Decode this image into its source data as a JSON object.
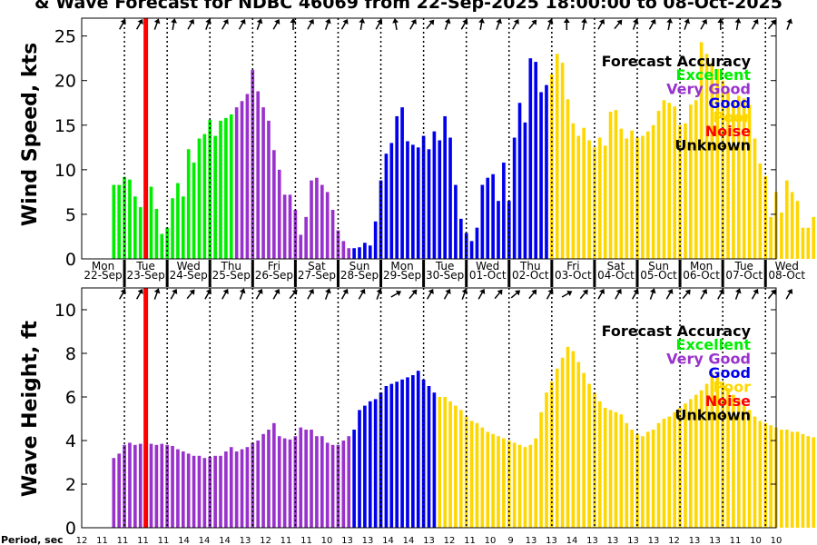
{
  "title": "& Wave Forecast for NDBC 46069 from 22-Sep-2025 18:00:00 to 08-Oct-2025",
  "colors": {
    "excellent": "#00ee00",
    "very_good": "#9932cc",
    "good": "#0000ee",
    "poor": "#ffd700",
    "noise": "#ff0000",
    "unknown": "#000000"
  },
  "legend": {
    "heading": "Forecast Accuracy",
    "items": [
      {
        "label": "Excellent",
        "color": "#00ee00"
      },
      {
        "label": "Very Good",
        "color": "#9932cc"
      },
      {
        "label": "Good",
        "color": "#0000ee"
      },
      {
        "label": "Poor",
        "color": "#ffd700"
      },
      {
        "label": "Noise",
        "color": "#ff0000"
      },
      {
        "label": "Unknown",
        "color": "#000000"
      }
    ]
  },
  "day_labels": [
    {
      "day": "Mon",
      "date": "22-Sep"
    },
    {
      "day": "Tue",
      "date": "23-Sep"
    },
    {
      "day": "Wed",
      "date": "24-Sep"
    },
    {
      "day": "Thu",
      "date": "25-Sep"
    },
    {
      "day": "Fri",
      "date": "26-Sep"
    },
    {
      "day": "Sat",
      "date": "27-Sep"
    },
    {
      "day": "Sun",
      "date": "28-Sep"
    },
    {
      "day": "Mon",
      "date": "29-Sep"
    },
    {
      "day": "Tue",
      "date": "30-Sep"
    },
    {
      "day": "Wed",
      "date": "01-Oct"
    },
    {
      "day": "Thu",
      "date": "02-Oct"
    },
    {
      "day": "Fri",
      "date": "03-Oct"
    },
    {
      "day": "Sat",
      "date": "04-Oct"
    },
    {
      "day": "Sun",
      "date": "05-Oct"
    },
    {
      "day": "Mon",
      "date": "06-Oct"
    },
    {
      "day": "Tue",
      "date": "07-Oct"
    },
    {
      "day": "Wed",
      "date": "08-Oct"
    }
  ],
  "period_label": "Period, sec",
  "period_values": [
    12,
    11,
    11,
    11,
    11,
    14,
    14,
    14,
    13,
    12,
    11,
    11,
    10,
    13,
    13,
    14,
    14,
    13,
    12,
    11,
    10,
    9,
    13,
    13,
    14,
    13,
    13,
    13,
    13,
    12,
    13,
    13,
    11,
    10,
    10
  ],
  "chart_data": [
    {
      "type": "bar",
      "ylabel": "Wind Speed, kts",
      "ylim": [
        0,
        27
      ],
      "yticks": [
        0,
        5,
        10,
        15,
        20,
        25
      ],
      "grid": false,
      "legend_position": "top-right",
      "x_unit": "days from 22-Sep 00:00",
      "bar_step_days": 0.125,
      "first_bar_day": 0.75,
      "now_line_day": 1.5,
      "values": [
        8.3,
        8.3,
        9.2,
        8.9,
        7.0,
        5.8,
        7.5,
        8.1,
        5.6,
        2.8,
        3.5,
        6.8,
        8.5,
        7.0,
        12.3,
        10.8,
        13.5,
        14.0,
        15.6,
        13.8,
        15.5,
        15.8,
        16.2,
        17.0,
        17.7,
        18.5,
        21.2,
        18.8,
        17.0,
        15.5,
        12.2,
        10.0,
        7.2,
        7.2,
        5.5,
        2.7,
        4.7,
        8.8,
        9.1,
        8.3,
        7.5,
        5.5,
        3.2,
        2.0,
        1.2,
        1.2,
        1.3,
        1.8,
        1.5,
        4.2,
        8.8,
        11.8,
        13.0,
        16.0,
        17.0,
        13.2,
        12.8,
        12.5,
        13.8,
        12.3,
        14.3,
        13.3,
        16.0,
        13.6,
        8.3,
        4.5,
        2.9,
        2.0,
        3.5,
        8.3,
        9.1,
        9.5,
        6.5,
        10.8,
        6.5,
        13.6,
        17.5,
        15.3,
        22.5,
        22.1,
        18.7,
        19.5,
        20.7,
        23.0,
        22.0,
        17.9,
        15.2,
        13.8,
        14.7,
        13.3,
        12.5,
        13.6,
        12.7,
        16.5,
        16.7,
        14.6,
        13.5,
        14.4,
        13.6,
        13.8,
        14.3,
        15.0,
        16.6,
        17.8,
        17.5,
        17.1,
        15.0,
        15.2,
        17.3,
        17.8,
        24.3,
        23.0,
        22.0,
        21.3,
        20.0,
        18.8,
        17.8,
        18.3,
        18.0,
        17.3,
        13.5,
        10.7,
        9.3,
        4.7,
        7.5,
        5.2,
        8.8,
        7.5,
        6.5,
        3.5,
        3.5,
        4.7,
        5.6,
        7.8
      ],
      "accuracy": [
        "excellent",
        "excellent",
        "excellent",
        "excellent",
        "excellent",
        "excellent",
        "excellent",
        "excellent",
        "excellent",
        "excellent",
        "excellent",
        "excellent",
        "excellent",
        "excellent",
        "excellent",
        "excellent",
        "excellent",
        "excellent",
        "excellent",
        "excellent",
        "excellent",
        "excellent",
        "excellent",
        "very_good",
        "very_good",
        "very_good",
        "very_good",
        "very_good",
        "very_good",
        "very_good",
        "very_good",
        "very_good",
        "very_good",
        "very_good",
        "very_good",
        "very_good",
        "very_good",
        "very_good",
        "very_good",
        "very_good",
        "very_good",
        "very_good",
        "very_good",
        "very_good",
        "very_good",
        "good",
        "good",
        "good",
        "good",
        "good",
        "good",
        "good",
        "good",
        "good",
        "good",
        "good",
        "good",
        "good",
        "good",
        "good",
        "good",
        "good",
        "good",
        "good",
        "good",
        "good",
        "good",
        "good",
        "good",
        "good",
        "good",
        "good",
        "good",
        "good",
        "good",
        "good",
        "good",
        "good",
        "good",
        "good",
        "good",
        "good",
        "poor",
        "poor",
        "poor",
        "poor",
        "poor",
        "poor",
        "poor",
        "poor",
        "poor",
        "poor",
        "poor",
        "poor",
        "poor",
        "poor",
        "poor",
        "poor",
        "poor",
        "poor",
        "poor",
        "poor",
        "poor",
        "poor",
        "poor",
        "poor",
        "poor",
        "poor",
        "poor",
        "poor",
        "poor",
        "poor",
        "poor",
        "poor",
        "poor",
        "poor",
        "poor",
        "poor",
        "poor",
        "poor",
        "poor",
        "poor",
        "poor",
        "poor",
        "poor",
        "poor",
        "poor",
        "poor",
        "poor",
        "poor",
        "poor",
        "poor",
        "poor",
        "poor"
      ],
      "direction_arrows_deg": [
        300,
        300,
        290,
        280,
        300,
        290,
        300,
        300,
        290,
        300,
        270,
        300,
        290,
        300,
        280,
        300,
        260,
        300,
        310,
        290,
        300,
        280,
        290,
        300,
        310,
        290,
        270,
        280,
        300,
        310,
        290,
        300,
        280,
        290,
        300,
        270,
        280,
        300,
        310,
        290
      ]
    },
    {
      "type": "bar",
      "ylabel": "Wave Height, ft",
      "ylim": [
        0,
        11
      ],
      "yticks": [
        0,
        2,
        4,
        6,
        8,
        10
      ],
      "grid": false,
      "legend_position": "top-right",
      "x_unit": "days from 22-Sep 00:00",
      "bar_step_days": 0.125,
      "first_bar_day": 0.75,
      "now_line_day": 1.5,
      "values": [
        3.2,
        3.4,
        3.8,
        3.9,
        3.8,
        3.85,
        3.8,
        3.85,
        3.8,
        3.85,
        3.8,
        3.75,
        3.6,
        3.5,
        3.4,
        3.3,
        3.3,
        3.2,
        3.25,
        3.3,
        3.3,
        3.5,
        3.7,
        3.5,
        3.6,
        3.7,
        3.9,
        4.0,
        4.3,
        4.5,
        4.8,
        4.2,
        4.1,
        4.05,
        4.2,
        4.6,
        4.5,
        4.5,
        4.2,
        4.2,
        3.9,
        3.8,
        3.8,
        4.0,
        4.2,
        4.5,
        5.4,
        5.6,
        5.8,
        5.9,
        6.2,
        6.5,
        6.6,
        6.7,
        6.8,
        6.9,
        7.0,
        7.2,
        6.8,
        6.5,
        6.2,
        6.0,
        6.0,
        5.8,
        5.6,
        5.4,
        5.1,
        4.9,
        4.8,
        4.6,
        4.4,
        4.3,
        4.2,
        4.1,
        4.0,
        3.9,
        3.8,
        3.7,
        3.8,
        4.1,
        5.3,
        6.2,
        6.7,
        7.3,
        7.8,
        8.3,
        8.1,
        7.6,
        7.1,
        6.6,
        6.2,
        5.8,
        5.5,
        5.4,
        5.3,
        5.2,
        4.8,
        4.5,
        4.3,
        4.2,
        4.4,
        4.5,
        4.8,
        5.0,
        5.1,
        5.3,
        5.5,
        5.7,
        5.9,
        6.1,
        6.3,
        6.6,
        7.1,
        7.0,
        6.7,
        6.4,
        6.1,
        5.9,
        5.6,
        5.4,
        5.1,
        4.9,
        4.8,
        4.7,
        4.6,
        4.5,
        4.5,
        4.4,
        4.4,
        4.3,
        4.2,
        4.15,
        4.1,
        4.0,
        3.95,
        3.9
      ],
      "accuracy": [
        "very_good",
        "very_good",
        "very_good",
        "very_good",
        "very_good",
        "very_good",
        "very_good",
        "very_good",
        "very_good",
        "very_good",
        "very_good",
        "very_good",
        "very_good",
        "very_good",
        "very_good",
        "very_good",
        "very_good",
        "very_good",
        "very_good",
        "very_good",
        "very_good",
        "very_good",
        "very_good",
        "very_good",
        "very_good",
        "very_good",
        "very_good",
        "very_good",
        "very_good",
        "very_good",
        "very_good",
        "very_good",
        "very_good",
        "very_good",
        "very_good",
        "very_good",
        "very_good",
        "very_good",
        "very_good",
        "very_good",
        "very_good",
        "very_good",
        "very_good",
        "very_good",
        "very_good",
        "good",
        "good",
        "good",
        "good",
        "good",
        "good",
        "good",
        "good",
        "good",
        "good",
        "good",
        "good",
        "good",
        "good",
        "good",
        "good",
        "poor",
        "poor",
        "poor",
        "poor",
        "poor",
        "poor",
        "poor",
        "poor",
        "poor",
        "poor",
        "poor",
        "poor",
        "poor",
        "poor",
        "poor",
        "poor",
        "poor",
        "poor",
        "poor",
        "poor",
        "poor",
        "poor",
        "poor",
        "poor",
        "poor",
        "poor",
        "poor",
        "poor",
        "poor",
        "poor",
        "poor",
        "poor",
        "poor",
        "poor",
        "poor",
        "poor",
        "poor",
        "poor",
        "poor",
        "poor",
        "poor",
        "poor",
        "poor",
        "poor",
        "poor",
        "poor",
        "poor",
        "poor",
        "poor",
        "poor",
        "poor",
        "poor",
        "poor",
        "poor",
        "poor",
        "poor",
        "poor",
        "poor",
        "poor",
        "poor",
        "poor",
        "poor",
        "poor",
        "poor",
        "poor",
        "poor",
        "poor",
        "poor",
        "poor",
        "poor",
        "poor",
        "poor",
        "poor",
        "poor",
        "poor"
      ],
      "direction_arrows_deg": [
        300,
        300,
        290,
        300,
        310,
        300,
        300,
        290,
        300,
        300,
        310,
        300,
        290,
        300,
        300,
        290,
        330,
        310,
        300,
        300,
        290,
        300,
        310,
        320,
        310,
        300,
        330,
        310,
        300,
        300,
        300,
        290,
        300,
        310,
        300,
        300,
        290,
        300,
        310,
        300
      ]
    }
  ]
}
